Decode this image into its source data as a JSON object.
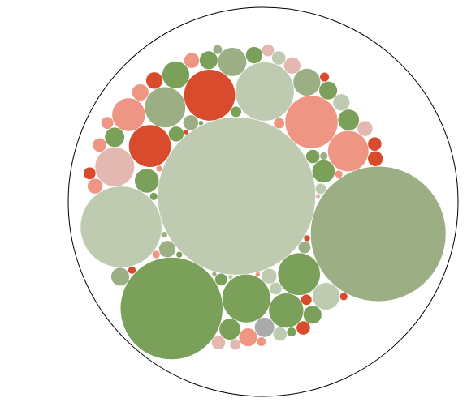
{
  "chart_data": {
    "type": "pack",
    "values": [
      11025,
      8100,
      4624,
      2916,
      1521,
      1225,
      1156,
      1024,
      784,
      784,
      729,
      729,
      676,
      529,
      484,
      361,
      324,
      324,
      324,
      256,
      225,
      196,
      196,
      169,
      169,
      144,
      144,
      144,
      144,
      144,
      121,
      121,
      121,
      121,
      121,
      121,
      100,
      100,
      100,
      100,
      100,
      100,
      100,
      81,
      81,
      81,
      81,
      81,
      81,
      81,
      64,
      64,
      64,
      64,
      64,
      64,
      49,
      49,
      49,
      49,
      49,
      36,
      36,
      36,
      36,
      25,
      25,
      25,
      25,
      25,
      25,
      16,
      16,
      16,
      16,
      9,
      9,
      9,
      9,
      9,
      9
    ],
    "colors": [
      "#bfcbb0",
      "#9caf84",
      "#7aa05a",
      "#bfcbb0",
      "#bfcbb0",
      "#ef9584",
      "#d84b2c",
      "#7aa05a",
      "#d84b2c",
      "#7aa05a",
      "#9caf84",
      "#ef9584",
      "#e3b8b1",
      "#7aa05a",
      "#ef9584",
      "#9caf84",
      "#9caf84",
      "#bfcbb0",
      "#7aa05a",
      "#7aa05a",
      "#7aa05a",
      "#7aa05a",
      "#7aa05a",
      "#aaaaaa",
      "#7aa05a",
      "#7aa05a",
      "#7aa05a",
      "#7aa05a",
      "#9caf84",
      "#ef9584",
      "#9caf84",
      "#bfcbb0",
      "#ef9584",
      "#d84b2c",
      "#e3b8b1",
      "#7aa05a",
      "#7aa05a",
      "#9caf84",
      "#bfcbb0",
      "#ef9584",
      "#ef9584",
      "#d84b2c",
      "#e3b8b1",
      "#7aa05a",
      "#bfcbb0",
      "#bfcbb0",
      "#ef9584",
      "#d84b2c",
      "#d84b2c",
      "#e3b8b1",
      "#7aa05a",
      "#9caf84",
      "#bfcbb0",
      "#ef9584",
      "#d84b2c",
      "#e3b8b1",
      "#7aa05a",
      "#bfcbb0",
      "#ef9584",
      "#d84b2c",
      "#e3b8b1",
      "#7aa05a",
      "#9caf84",
      "#ef9584",
      "#d84b2c",
      "#7aa05a",
      "#9caf84",
      "#ef9584",
      "#ef9584",
      "#d84b2c",
      "#d84b2c",
      "#7aa05a",
      "#9caf84",
      "#ef9584",
      "#d84b2c",
      "#7aa05a",
      "#9caf84",
      "#bfcbb0",
      "#ef9584",
      "#d84b2c",
      "#e3b8b1"
    ]
  }
}
